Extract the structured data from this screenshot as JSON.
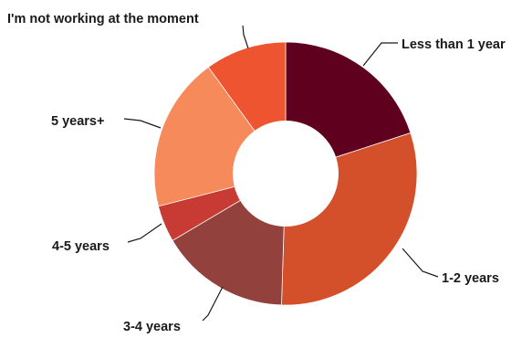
{
  "chart_data": {
    "type": "pie",
    "donut": true,
    "title": "",
    "legend": "none",
    "unit": "share of responses",
    "slices": [
      {
        "label": "Less than 1 year",
        "value": 20,
        "color": "#5f001e"
      },
      {
        "label": "1-2 years",
        "value": 30.5,
        "color": "#d4502b"
      },
      {
        "label": "3-4 years",
        "value": 16,
        "color": "#92413d"
      },
      {
        "label": "4-5 years",
        "value": 4.5,
        "color": "#c83a34"
      },
      {
        "label": "5 years+",
        "value": 19,
        "color": "#f68a5b"
      },
      {
        "label": "I'm not working at the moment",
        "value": 10,
        "color": "#ee5430"
      }
    ]
  }
}
